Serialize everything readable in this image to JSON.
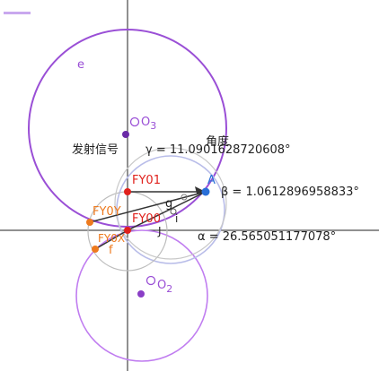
{
  "labels": {
    "circle_e": "e",
    "o3": "O",
    "o3_sub": "3",
    "o2": "O",
    "o2_sub": "2",
    "fa_she": "发射信号",
    "gamma": "γ = 11.0901628720608°",
    "jiaodu": "角度",
    "fy01": "FY01",
    "fy0y": "FY0Y",
    "fy00": "FY00",
    "fy0x": "FY0X",
    "pt_a": "A",
    "beta": "β = 1.0612896958833°",
    "g": "g",
    "i": "i",
    "j": "J",
    "f": "f",
    "alpha": "α = 26.565051177078°"
  },
  "colors": {
    "purple": "#9a4fd6",
    "violet": "#c07df0",
    "lavender": "#aab0e6",
    "gray_circle": "#b8b8b8",
    "red": "#e0201c",
    "orange": "#ee7a1e",
    "blue": "#2a6fd8",
    "dark_purple": "#6a2aa6",
    "axis": "#222222",
    "segment": "#333333"
  }
}
